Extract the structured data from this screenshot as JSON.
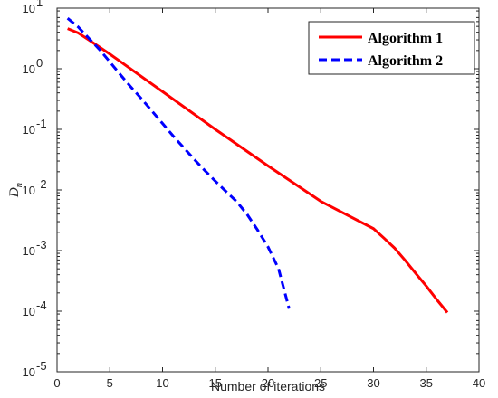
{
  "chart_data": {
    "type": "line",
    "xlabel": "Number of iterations",
    "ylabel": "D",
    "ylabel_subscript": "n",
    "xlim": [
      0,
      40
    ],
    "ylim_exponents": [
      -5,
      1
    ],
    "yscale": "log",
    "x_ticks": [
      "0",
      "5",
      "10",
      "15",
      "20",
      "25",
      "30",
      "35",
      "40"
    ],
    "y_tick_base": "10",
    "y_tick_exponents": [
      "-5",
      "-4",
      "-3",
      "-2",
      "-1",
      "0",
      "1"
    ],
    "grid": false,
    "legend_position": "top-right",
    "series": [
      {
        "name": "Algorithm 1",
        "color": "#ff0000",
        "style": "solid",
        "x": [
          1,
          2,
          3,
          5,
          10,
          15,
          20,
          25,
          30,
          31,
          32,
          33,
          34,
          35,
          36,
          37
        ],
        "y": [
          4.6,
          3.9,
          3.0,
          1.75,
          0.42,
          0.1,
          0.025,
          0.0065,
          0.0023,
          0.0016,
          0.0011,
          0.00069,
          0.00042,
          0.00026,
          0.000155,
          9.5e-05
        ]
      },
      {
        "name": "Algorithm 2",
        "color": "#0000ff",
        "style": "dashed",
        "x": [
          1,
          2,
          3,
          4,
          5,
          6,
          7,
          8,
          9,
          10,
          11,
          12,
          13,
          14,
          15,
          16,
          17,
          18,
          19,
          20,
          21,
          22
        ],
        "y": [
          6.8,
          4.9,
          3.2,
          2.1,
          1.3,
          0.8,
          0.5,
          0.32,
          0.2,
          0.125,
          0.078,
          0.05,
          0.032,
          0.021,
          0.014,
          0.0095,
          0.0065,
          0.004,
          0.0022,
          0.00115,
          0.0005,
          0.00011
        ]
      }
    ]
  }
}
